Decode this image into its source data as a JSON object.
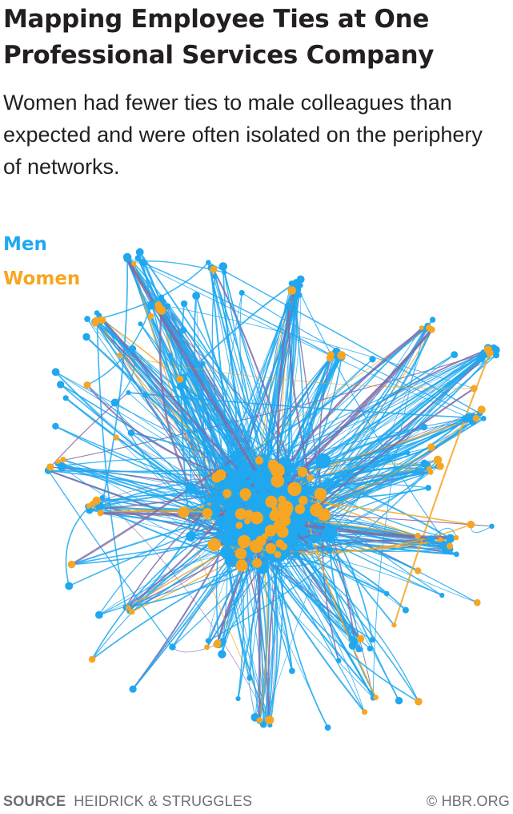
{
  "header": {
    "title": "Mapping Employee Ties at One Professional Services Company",
    "subtitle": "Women had fewer ties to male colleagues than expected and were often isolated on the periphery of networks."
  },
  "legend": {
    "men": {
      "label": "Men",
      "color": "#1fa8f0"
    },
    "women": {
      "label": "Women",
      "color": "#f6a623"
    }
  },
  "colors": {
    "tie_mixed": "#7e6aa8",
    "tie_women": "#f6a623",
    "tie_men": "#1fa8f0"
  },
  "footer": {
    "source_label": "SOURCE",
    "source": "HEIDRICK & STRUGGLES",
    "copyright": "© HBR.ORG"
  }
}
